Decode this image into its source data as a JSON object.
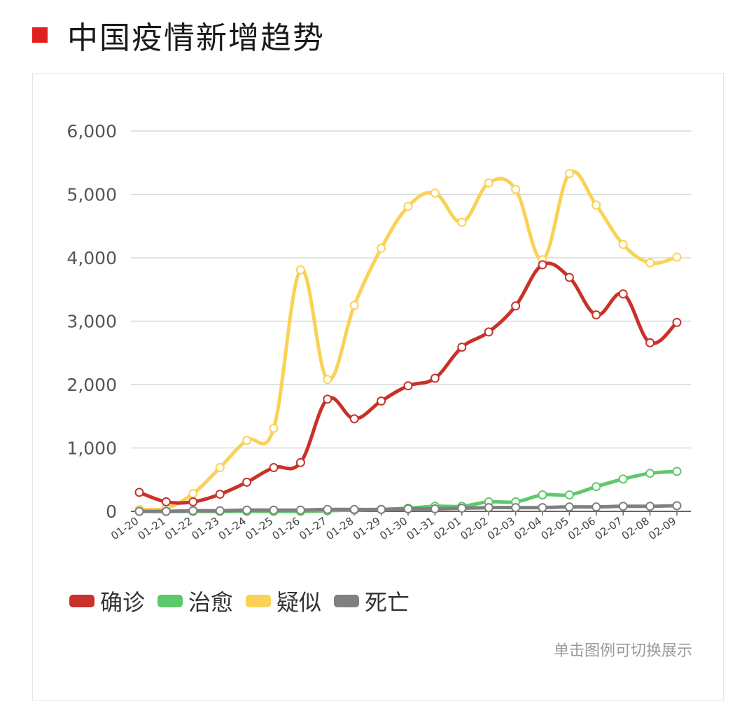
{
  "header": {
    "title": "中国疫情新增趋势",
    "marker_color": "#e02020"
  },
  "legend_hint": "单击图例可切换展示",
  "chart_data": {
    "type": "line",
    "title": "中国疫情新增趋势",
    "xlabel": "",
    "ylabel": "",
    "ylim": [
      0,
      6000
    ],
    "y_ticks": [
      0,
      1000,
      2000,
      3000,
      4000,
      5000,
      6000
    ],
    "y_tick_labels": [
      "0",
      "1,000",
      "2,000",
      "3,000",
      "4,000",
      "5,000",
      "6,000"
    ],
    "grid": true,
    "legend_position": "bottom-left",
    "categories": [
      "01-20",
      "01-21",
      "01-22",
      "01-23",
      "01-24",
      "01-25",
      "01-26",
      "01-27",
      "01-28",
      "01-29",
      "01-30",
      "01-31",
      "02-01",
      "02-02",
      "02-03",
      "02-04",
      "02-05",
      "02-06",
      "02-07",
      "02-08",
      "02-09"
    ],
    "series": [
      {
        "name": "确诊",
        "color": "#c8322a",
        "values": [
          300,
          150,
          150,
          270,
          460,
          690,
          770,
          1770,
          1460,
          1740,
          1980,
          2100,
          2590,
          2830,
          3240,
          3890,
          3690,
          3100,
          3430,
          2660,
          2980
        ]
      },
      {
        "name": "治愈",
        "color": "#5ec96b",
        "values": [
          0,
          0,
          0,
          0,
          0,
          0,
          0,
          10,
          20,
          30,
          50,
          80,
          80,
          150,
          150,
          260,
          260,
          390,
          510,
          600,
          630
        ]
      },
      {
        "name": "疑似",
        "color": "#f9d256",
        "values": [
          30,
          50,
          280,
          690,
          1120,
          1310,
          3810,
          2080,
          3250,
          4150,
          4810,
          5020,
          4560,
          5180,
          5080,
          3970,
          5330,
          4830,
          4210,
          3920,
          4010
        ]
      },
      {
        "name": "死亡",
        "color": "#808080",
        "values": [
          0,
          0,
          10,
          10,
          20,
          20,
          20,
          30,
          30,
          30,
          40,
          40,
          50,
          60,
          60,
          60,
          70,
          70,
          80,
          80,
          90
        ]
      }
    ]
  }
}
